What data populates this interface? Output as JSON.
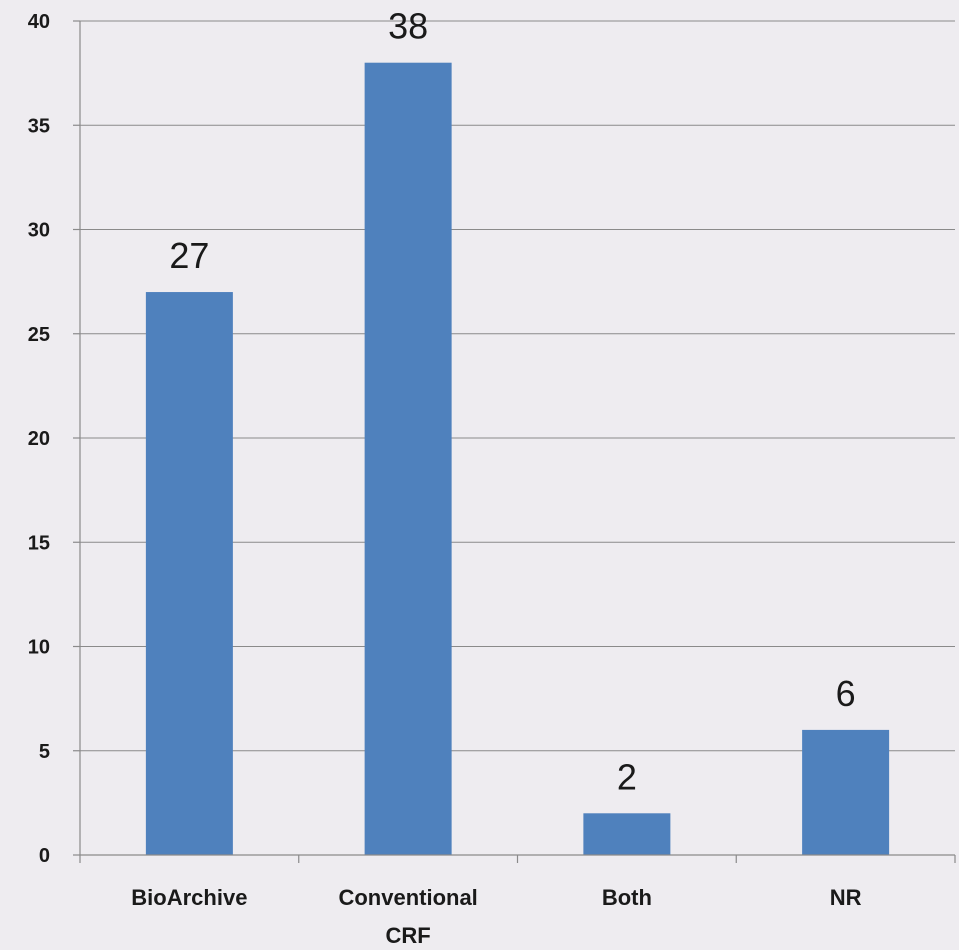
{
  "chart_data": {
    "type": "bar",
    "title": "",
    "xlabel": "",
    "ylabel": "",
    "categories": [
      [
        "BioArchive"
      ],
      [
        "Conventional",
        "CRF"
      ],
      [
        "Both"
      ],
      [
        "NR"
      ]
    ],
    "values": [
      27,
      38,
      2,
      6
    ],
    "data_labels": [
      "27",
      "38",
      "2",
      "6"
    ],
    "ylim": [
      0,
      40
    ],
    "y_ticks": [
      0,
      5,
      10,
      15,
      20,
      25,
      30,
      35,
      40
    ],
    "grid": true,
    "legend": "none",
    "colors": {
      "bar": "#4f81bd",
      "background": "#eeecf0",
      "grid": "#8a8a8a"
    }
  }
}
